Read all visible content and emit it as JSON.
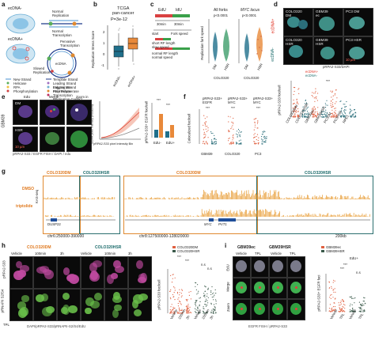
{
  "panels": {
    "a": "a",
    "b": "b",
    "c": "c",
    "d": "d",
    "e": "e",
    "f": "f",
    "g": "g",
    "h": "h",
    "i": "i"
  },
  "a": {
    "ecDNA_minus": "ecDNA-",
    "ecDNA_plus": "ecDNA+",
    "normal_replication": "Normal\nReplication",
    "normal_transcription": "Normal\nTranscription",
    "pervasive_transcription": "Pervasive\nTranscription",
    "slowed_replication": "Slowed\nReplication",
    "ecdna": "ecDNA",
    "legend": [
      "New Strand",
      "Helicase",
      "RPA",
      "Phosphorylation",
      "Template Strand",
      "Leading Strand Polymerase",
      "Lagging Strand Polymerase",
      "RNA Polymerase",
      "Transcription Replication Conflict"
    ]
  },
  "b": {
    "title": "TCGA\npan-cancer",
    "pvalue": "P=3e-12",
    "ylabel": "Replication Stress Score",
    "yticks": [
      "2",
      "1",
      "0",
      "-1"
    ],
    "xticks": [
      "ecDNA-",
      "ecDNA+"
    ]
  },
  "c": {
    "edu": "EdU",
    "idu": "IdU",
    "t1": "30min",
    "t2": "30min",
    "start": "start",
    "fork_speed": "Fork speed",
    "short": "short RF length",
    "slow": "slow speed",
    "normal_len": "normal RF length",
    "normal_speed": "normal speed",
    "all_forks": "All forks",
    "myc_locus": "MYC locus",
    "p1": "p<0.0001",
    "p2": "p<0.0001",
    "ylabel": "Replication fork speed",
    "xlab1": [
      "DM",
      "HSR"
    ],
    "xlab2": [
      "DM",
      "HSR"
    ],
    "cell_line": "COLO320",
    "cell_line2": "COLO320"
  },
  "d": {
    "ecdna_plus": "ecDNA+",
    "ecdna_minus": "ecDNA-",
    "tiles": [
      "COLO320\nDM",
      "GBM39\nec",
      "PC3 DM",
      "COLO320\nHSR",
      "GBM39\nHSR",
      "PC3 HSR"
    ],
    "scale": "10 µm",
    "legend": "pRPA2-S33/DAPI",
    "legend2": "ecDNA+",
    "legend3": "ecDNA-",
    "ylabel": "pRPA2-S33 foci/cell",
    "stars": "***",
    "xticks": [
      "COLO320DM",
      "COLO320HSR",
      "GBM39ec",
      "GBM39HSR",
      "PC3DM",
      "PC3HSR",
      "RPE1"
    ]
  },
  "e": {
    "cols": [
      "EdU",
      "Merge",
      "Zoom in"
    ],
    "rows": [
      "DM",
      "HSR"
    ],
    "side": "GBM39",
    "scale": "10 µm",
    "legend": "pRPA2-S33 / EGFR FISH / DAPI / edu",
    "xlabel": "pRPA2-S33 pixel intensity Bin",
    "ylabel": "EGFR pixel intensity probability",
    "bar_ylabel": "pRPA2-S33+ EGFR foci/cell",
    "bar_stars": [
      "***",
      "***"
    ],
    "bar_x": [
      "EdU-",
      "EdU+"
    ]
  },
  "f": {
    "h1": "pRPA2-S33+\nEGFR",
    "h2": "pRPA2-S33+\nMYC",
    "h3": "pRPA2-S33+\nMYC",
    "ylabel": "Colocalized foci/cell",
    "groups": [
      "GBM39",
      "COLO320",
      "PC3"
    ],
    "xt": [
      "ec",
      "HSR",
      "DM",
      "HSR",
      "DM",
      "HSR"
    ],
    "stars": [
      "***",
      "***",
      "***"
    ]
  },
  "g": {
    "dm_label": "COLO320DM",
    "hsr_label": "COLO320HSR",
    "dmso": "DMSO",
    "triptolide": "triptolide",
    "yaxis": "KAS-seq",
    "genes_left": "DUSP22",
    "genes_right": [
      "MYC",
      "PVT1"
    ],
    "coord1": "chr6:250000-390000",
    "coord2": "chr8:127500000-128020000",
    "scalebar": "200kb"
  },
  "h": {
    "rows": [
      "pRPA2-S33",
      "pRNAPII S2/S4"
    ],
    "cols_dm": [
      "Vehicle",
      "100min",
      "3h"
    ],
    "cols_hsr": [
      "Vehicle",
      "100min",
      "3h"
    ],
    "dm_label": "COLO320DM",
    "hsr_label": "COLO320HSR",
    "tpl": "TPL",
    "legend": "DAPI/pRPA2-S33/pRNAPII-S2/S4/EdU",
    "chart_ylabel": "pRPA2-S33 foci/cell",
    "legend_dm": "COLO320DM",
    "legend_hsr": "COLO320HSR",
    "stars": [
      "***",
      "***",
      "n.s",
      "n.s"
    ],
    "xticks": [
      "Vehicle",
      "100min",
      "3h",
      "Vehicle",
      "100min",
      "3h"
    ]
  },
  "i": {
    "gbm39ec": "GBM39ec",
    "gbm39hsr": "GBM39HSR",
    "cols": [
      "Vehicle",
      "TPL",
      "Vehicle",
      "TPL"
    ],
    "rows": [
      "EdU",
      "Merge",
      "Zoom"
    ],
    "legend": "EGFR FISH / pRPA2-S33",
    "chart_ylabel": "pRPA2-S33+ EGFR foci",
    "edu_plus": "EdU+",
    "legend_ec": "GBM39ec",
    "legend_hsr": "GBM39HSR",
    "stars": [
      "***",
      "***",
      "n.s"
    ],
    "xticks": [
      "Vehicle",
      "TPL",
      "Vehicle",
      "TPL"
    ]
  }
}
